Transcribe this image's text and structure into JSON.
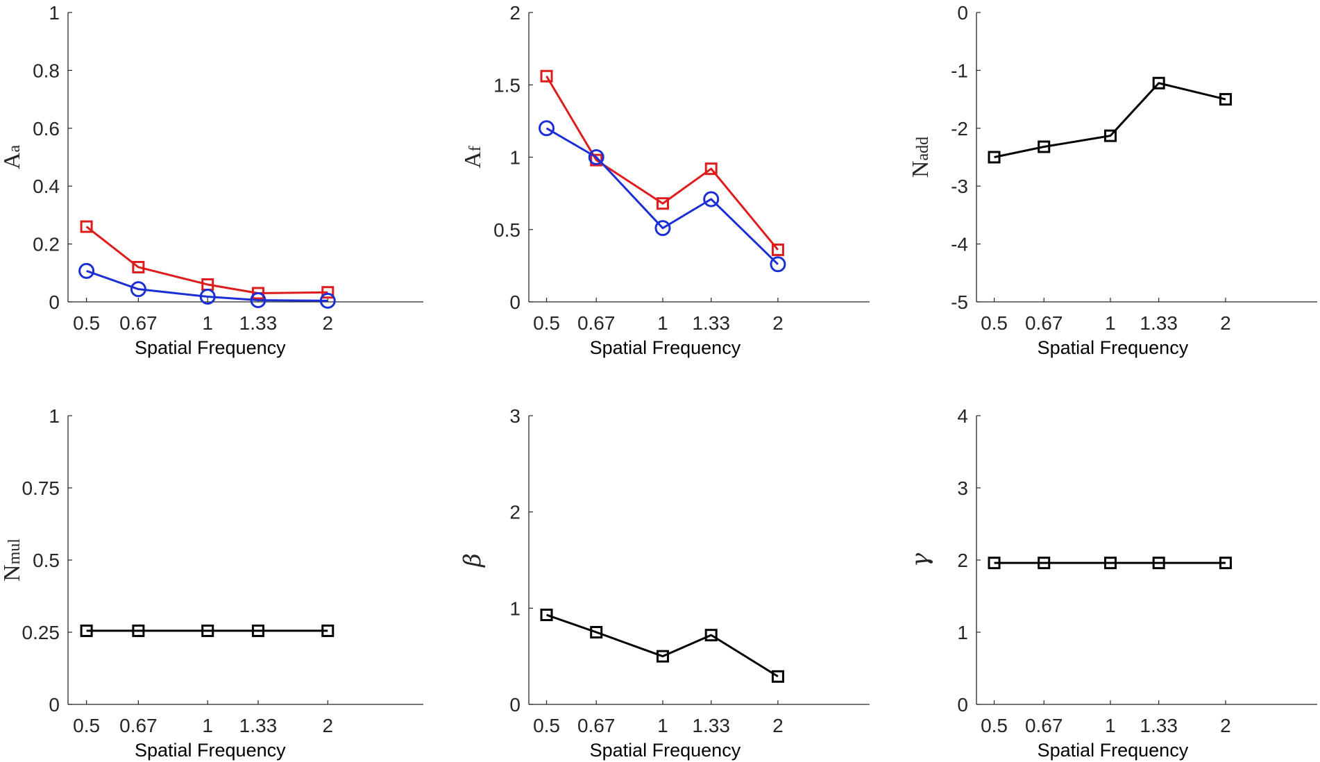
{
  "chart_data": [
    {
      "type": "line",
      "ylabel_main": "A",
      "ylabel_sub": "a",
      "xlabel": "Spatial  Frequency",
      "x_categories": [
        "0.5",
        "0.67",
        "1",
        "1.33",
        "2"
      ],
      "x": [
        0.5,
        0.67,
        1,
        1.33,
        2
      ],
      "ylim": [
        0,
        1
      ],
      "yticks": [
        0,
        0.2,
        0.4,
        0.6,
        0.8,
        1
      ],
      "ytick_labels": [
        "0",
        "0.2",
        "0.4",
        "0.6",
        "0.8",
        "1"
      ],
      "series": [
        {
          "name": "red",
          "color": "#dd1c1c",
          "marker": "square",
          "values": [
            0.26,
            0.12,
            0.06,
            0.03,
            0.033
          ]
        },
        {
          "name": "blue",
          "color": "#1b2fd6",
          "marker": "circle",
          "values": [
            0.107,
            0.044,
            0.018,
            0.006,
            0.004
          ]
        }
      ]
    },
    {
      "type": "line",
      "ylabel_main": "A",
      "ylabel_sub": "f",
      "xlabel": "Spatial  Frequency",
      "x_categories": [
        "0.5",
        "0.67",
        "1",
        "1.33",
        "2"
      ],
      "x": [
        0.5,
        0.67,
        1,
        1.33,
        2
      ],
      "ylim": [
        0,
        2
      ],
      "yticks": [
        0,
        0.5,
        1,
        1.5,
        2
      ],
      "ytick_labels": [
        "0",
        "0.5",
        "1",
        "1.5",
        "2"
      ],
      "series": [
        {
          "name": "red",
          "color": "#dd1c1c",
          "marker": "square",
          "values": [
            1.56,
            0.98,
            0.68,
            0.92,
            0.36
          ]
        },
        {
          "name": "blue",
          "color": "#1b2fd6",
          "marker": "circle",
          "values": [
            1.2,
            1.0,
            0.51,
            0.71,
            0.26
          ]
        }
      ]
    },
    {
      "type": "line",
      "ylabel_main": "N",
      "ylabel_sub": "add",
      "xlabel": "Spatial  Frequency",
      "x_categories": [
        "0.5",
        "0.67",
        "1",
        "1.33",
        "2"
      ],
      "x": [
        0.5,
        0.67,
        1,
        1.33,
        2
      ],
      "ylim": [
        -5,
        0
      ],
      "yticks": [
        -5,
        -4,
        -3,
        -2,
        -1,
        0
      ],
      "ytick_labels": [
        "-5",
        "-4",
        "-3",
        "-2",
        "-1",
        "0"
      ],
      "series": [
        {
          "name": "black",
          "color": "#000000",
          "marker": "square",
          "values": [
            -2.5,
            -2.32,
            -2.13,
            -1.22,
            -1.5
          ]
        }
      ]
    },
    {
      "type": "line",
      "ylabel_main": "N",
      "ylabel_sub": "mul",
      "xlabel": "Spatial  Frequency",
      "x_categories": [
        "0.5",
        "0.67",
        "1",
        "1.33",
        "2"
      ],
      "x": [
        0.5,
        0.67,
        1,
        1.33,
        2
      ],
      "ylim": [
        0,
        1
      ],
      "yticks": [
        0,
        0.25,
        0.5,
        0.75,
        1
      ],
      "ytick_labels": [
        "0",
        "0.25",
        "0.5",
        "0.75",
        "1"
      ],
      "series": [
        {
          "name": "black",
          "color": "#000000",
          "marker": "square",
          "values": [
            0.255,
            0.255,
            0.255,
            0.255,
            0.255
          ]
        }
      ]
    },
    {
      "type": "line",
      "ylabel_main": "β",
      "ylabel_sub": "",
      "ylabel_greek": true,
      "xlabel": "Spatial  Frequency",
      "x_categories": [
        "0.5",
        "0.67",
        "1",
        "1.33",
        "2"
      ],
      "x": [
        0.5,
        0.67,
        1,
        1.33,
        2
      ],
      "ylim": [
        0,
        3
      ],
      "yticks": [
        0,
        1,
        2,
        3
      ],
      "ytick_labels": [
        "0",
        "1",
        "2",
        "3"
      ],
      "series": [
        {
          "name": "black",
          "color": "#000000",
          "marker": "square",
          "values": [
            0.93,
            0.75,
            0.5,
            0.72,
            0.29
          ]
        }
      ]
    },
    {
      "type": "line",
      "ylabel_main": "γ",
      "ylabel_sub": "",
      "ylabel_greek": true,
      "xlabel": "Spatial  Frequency",
      "x_categories": [
        "0.5",
        "0.67",
        "1",
        "1.33",
        "2"
      ],
      "x": [
        0.5,
        0.67,
        1,
        1.33,
        2
      ],
      "ylim": [
        0,
        4
      ],
      "yticks": [
        0,
        1,
        2,
        3,
        4
      ],
      "ytick_labels": [
        "0",
        "1",
        "2",
        "3",
        "4"
      ],
      "series": [
        {
          "name": "black",
          "color": "#000000",
          "marker": "square",
          "values": [
            1.96,
            1.96,
            1.96,
            1.96,
            1.96
          ]
        }
      ]
    }
  ]
}
